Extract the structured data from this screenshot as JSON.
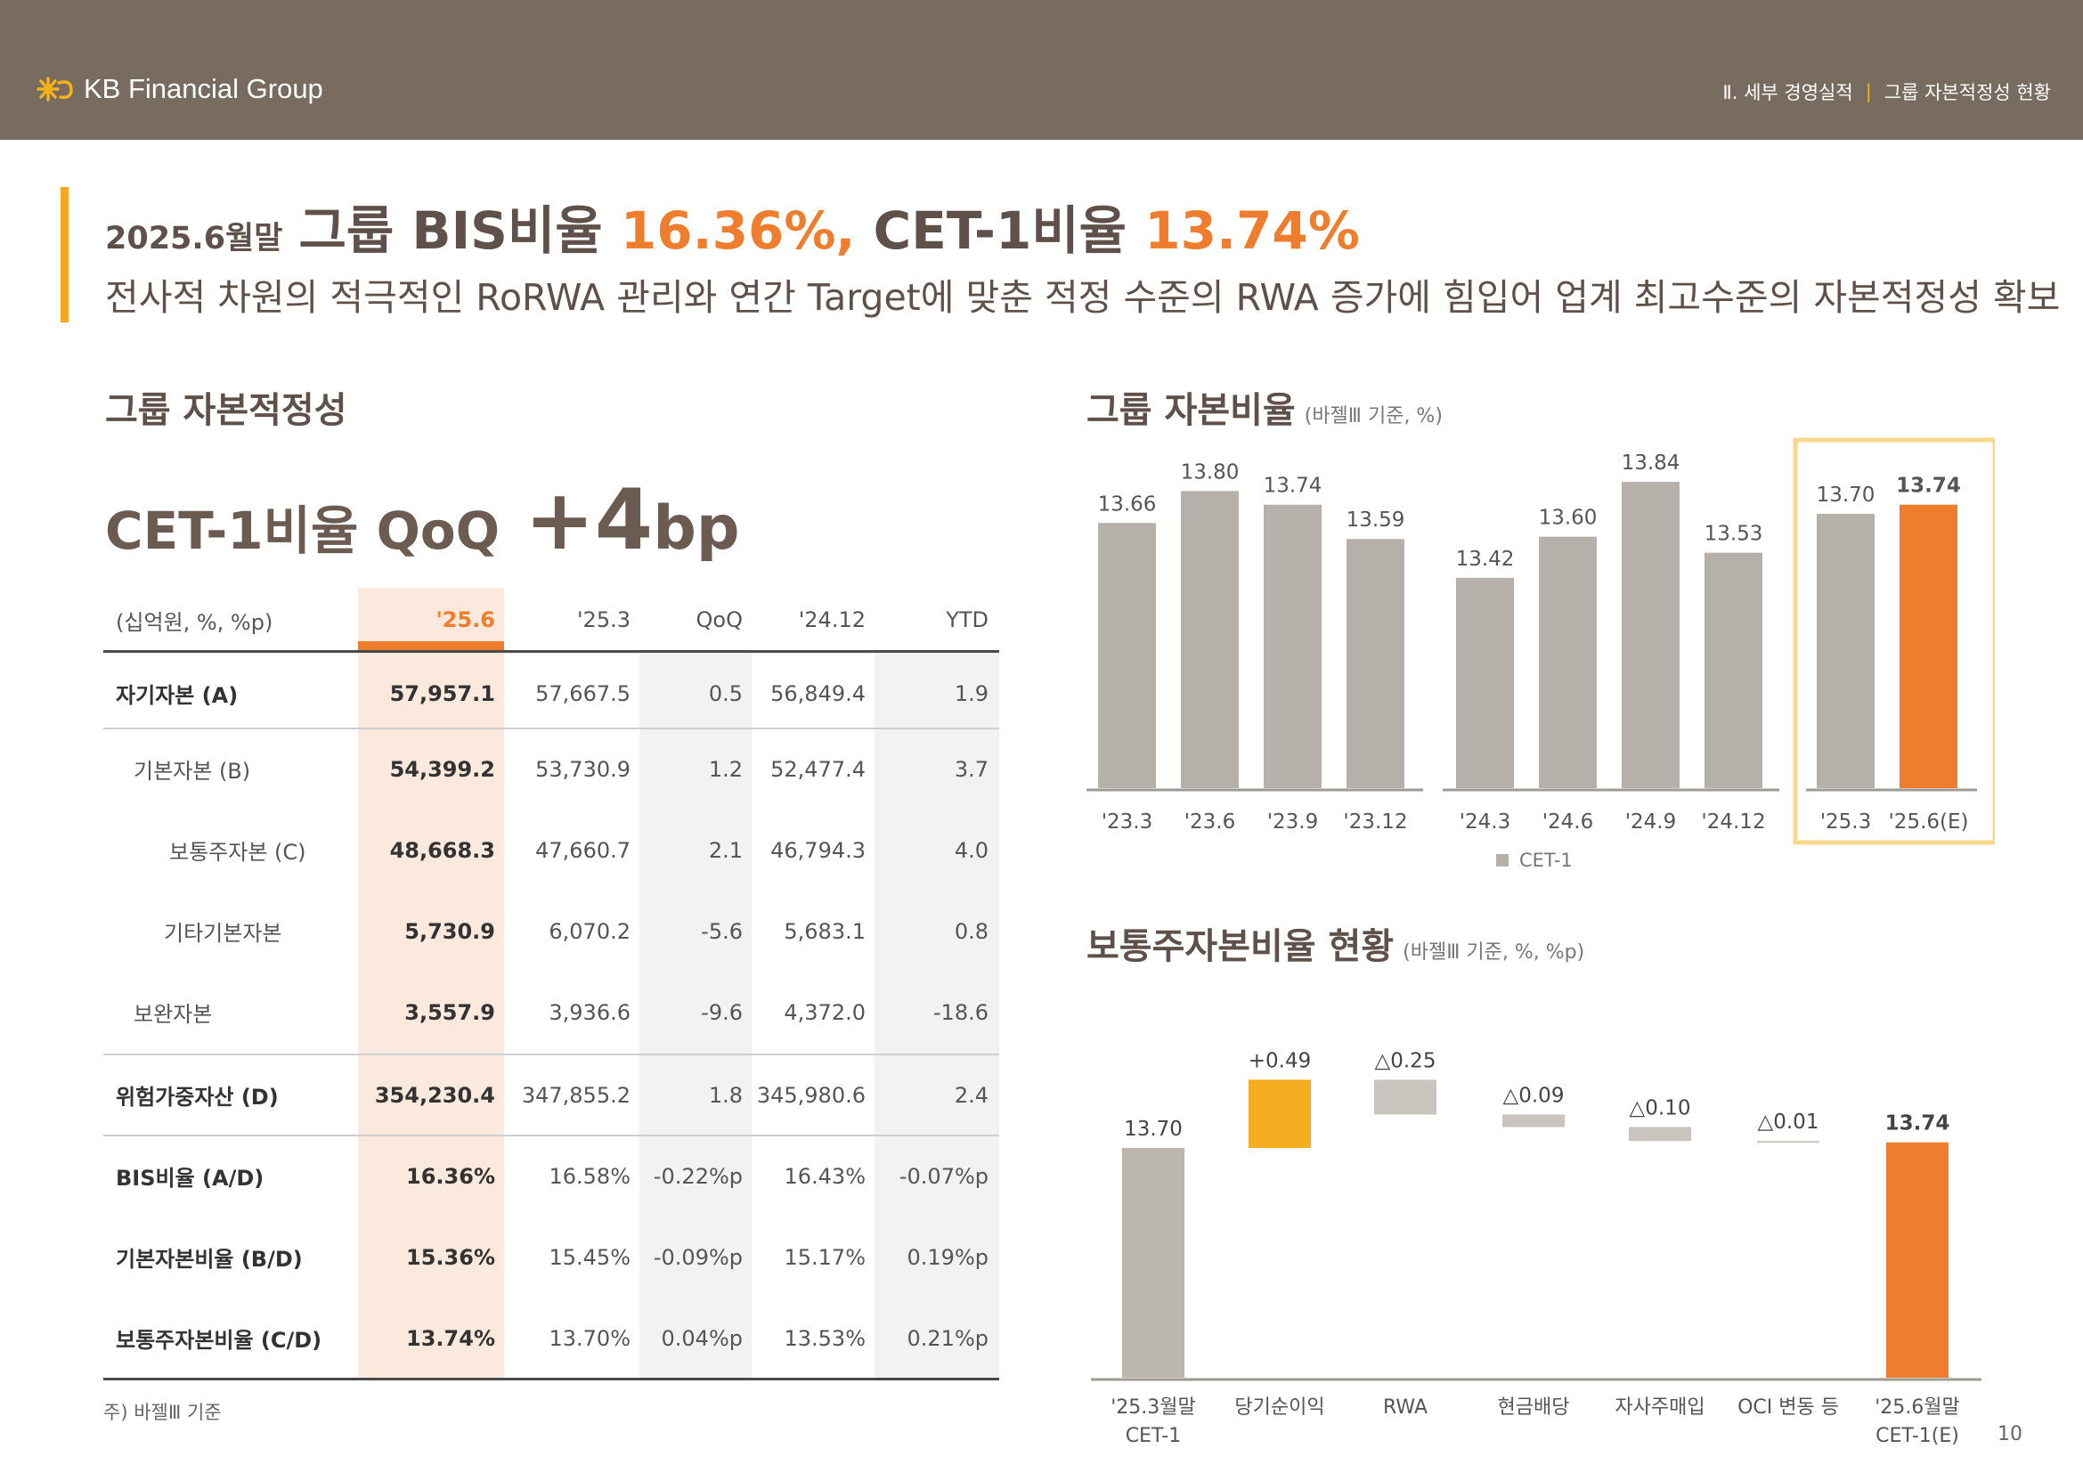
{
  "header": {
    "logo_text": "KB Financial Group",
    "breadcrumb_section": "Ⅱ. 세부 경영실적",
    "breadcrumb_sep": "|",
    "breadcrumb_page": "그룹 자본적정성 현황"
  },
  "headline": {
    "date": "2025.6월말",
    "part1": "그룹 BIS비율 ",
    "bis": "16.36%,",
    "part2": " CET-1비율 ",
    "cet1": "13.74%",
    "sub": "전사적 차원의 적극적인 RoRWA 관리와 연간 Target에 맞춘 적정 수준의 RWA 증가에 힘입어 업계 최고수준의 자본적정성 확보"
  },
  "left": {
    "title": "그룹 자본적정성",
    "kpi_label": "CET-1비율 QoQ",
    "kpi_value": "+4",
    "kpi_unit": "bp",
    "table": {
      "headers": [
        "(십억원, %, %p)",
        "'25.6",
        "'25.3",
        "QoQ",
        "'24.12",
        "YTD"
      ],
      "rows": [
        [
          "자기자본 (A)",
          "57,957.1",
          "57,667.5",
          "0.5",
          "56,849.4",
          "1.9"
        ],
        [
          "기본자본 (B)",
          "54,399.2",
          "53,730.9",
          "1.2",
          "52,477.4",
          "3.7"
        ],
        [
          "보통주자본 (C)",
          "48,668.3",
          "47,660.7",
          "2.1",
          "46,794.3",
          "4.0"
        ],
        [
          "기타기본자본",
          "5,730.9",
          "6,070.2",
          "-5.6",
          "5,683.1",
          "0.8"
        ],
        [
          "보완자본",
          "3,557.9",
          "3,936.6",
          "-9.6",
          "4,372.0",
          "-18.6"
        ],
        [
          "위험가중자산 (D)",
          "354,230.4",
          "347,855.2",
          "1.8",
          "345,980.6",
          "2.4"
        ],
        [
          "BIS비율 (A/D)",
          "16.36%",
          "16.58%",
          "-0.22%p",
          "16.43%",
          "-0.07%p"
        ],
        [
          "기본자본비율 (B/D)",
          "15.36%",
          "15.45%",
          "-0.09%p",
          "15.17%",
          "0.19%p"
        ],
        [
          "보통주자본비율 (C/D)",
          "13.74%",
          "13.70%",
          "0.04%p",
          "13.53%",
          "0.21%p"
        ]
      ]
    },
    "footnote": "주) 바젤Ⅲ 기준"
  },
  "chart_data": [
    {
      "type": "bar",
      "title": "그룹 자본비율",
      "subtitle": "(바젤Ⅲ 기준, %)",
      "categories": [
        "'23.3",
        "'23.6",
        "'23.9",
        "'23.12",
        "'24.3",
        "'24.6",
        "'24.9",
        "'24.12",
        "'25.3",
        "'25.6(E)"
      ],
      "series": [
        {
          "name": "CET-1",
          "values": [
            13.66,
            13.8,
            13.74,
            13.59,
            13.42,
            13.6,
            13.84,
            13.53,
            13.7,
            13.74
          ]
        }
      ],
      "ylim": [
        12.5,
        14.0
      ],
      "highlight": [
        "'25.3",
        "'25.6(E)"
      ],
      "legend": "bottom",
      "colors": {
        "bar": "#b5b0a9",
        "highlight_bar": "#ee7d2e",
        "box": "#f7d98b"
      }
    },
    {
      "type": "bar",
      "subtype": "waterfall",
      "title": "보통주자본비율 현황",
      "subtitle": "(바젤Ⅲ 기준, %, %p)",
      "categories": [
        "'25.3월말 CET-1",
        "당기순이익",
        "RWA",
        "현금배당",
        "자사주매입",
        "OCI 변동 등",
        "'25.6월말 CET-1(E)"
      ],
      "values": [
        13.7,
        0.49,
        -0.25,
        -0.09,
        -0.1,
        -0.01,
        13.74
      ],
      "labels": [
        "13.70",
        "+0.49",
        "△0.25",
        "△0.09",
        "△0.10",
        "△0.01",
        "13.74"
      ],
      "colors": {
        "total_start": "#bcb7ae",
        "increase": "#f7ad21",
        "decrease": "#c9c4bd",
        "total_end": "#ee7d2e"
      }
    }
  ],
  "page_number": "10"
}
